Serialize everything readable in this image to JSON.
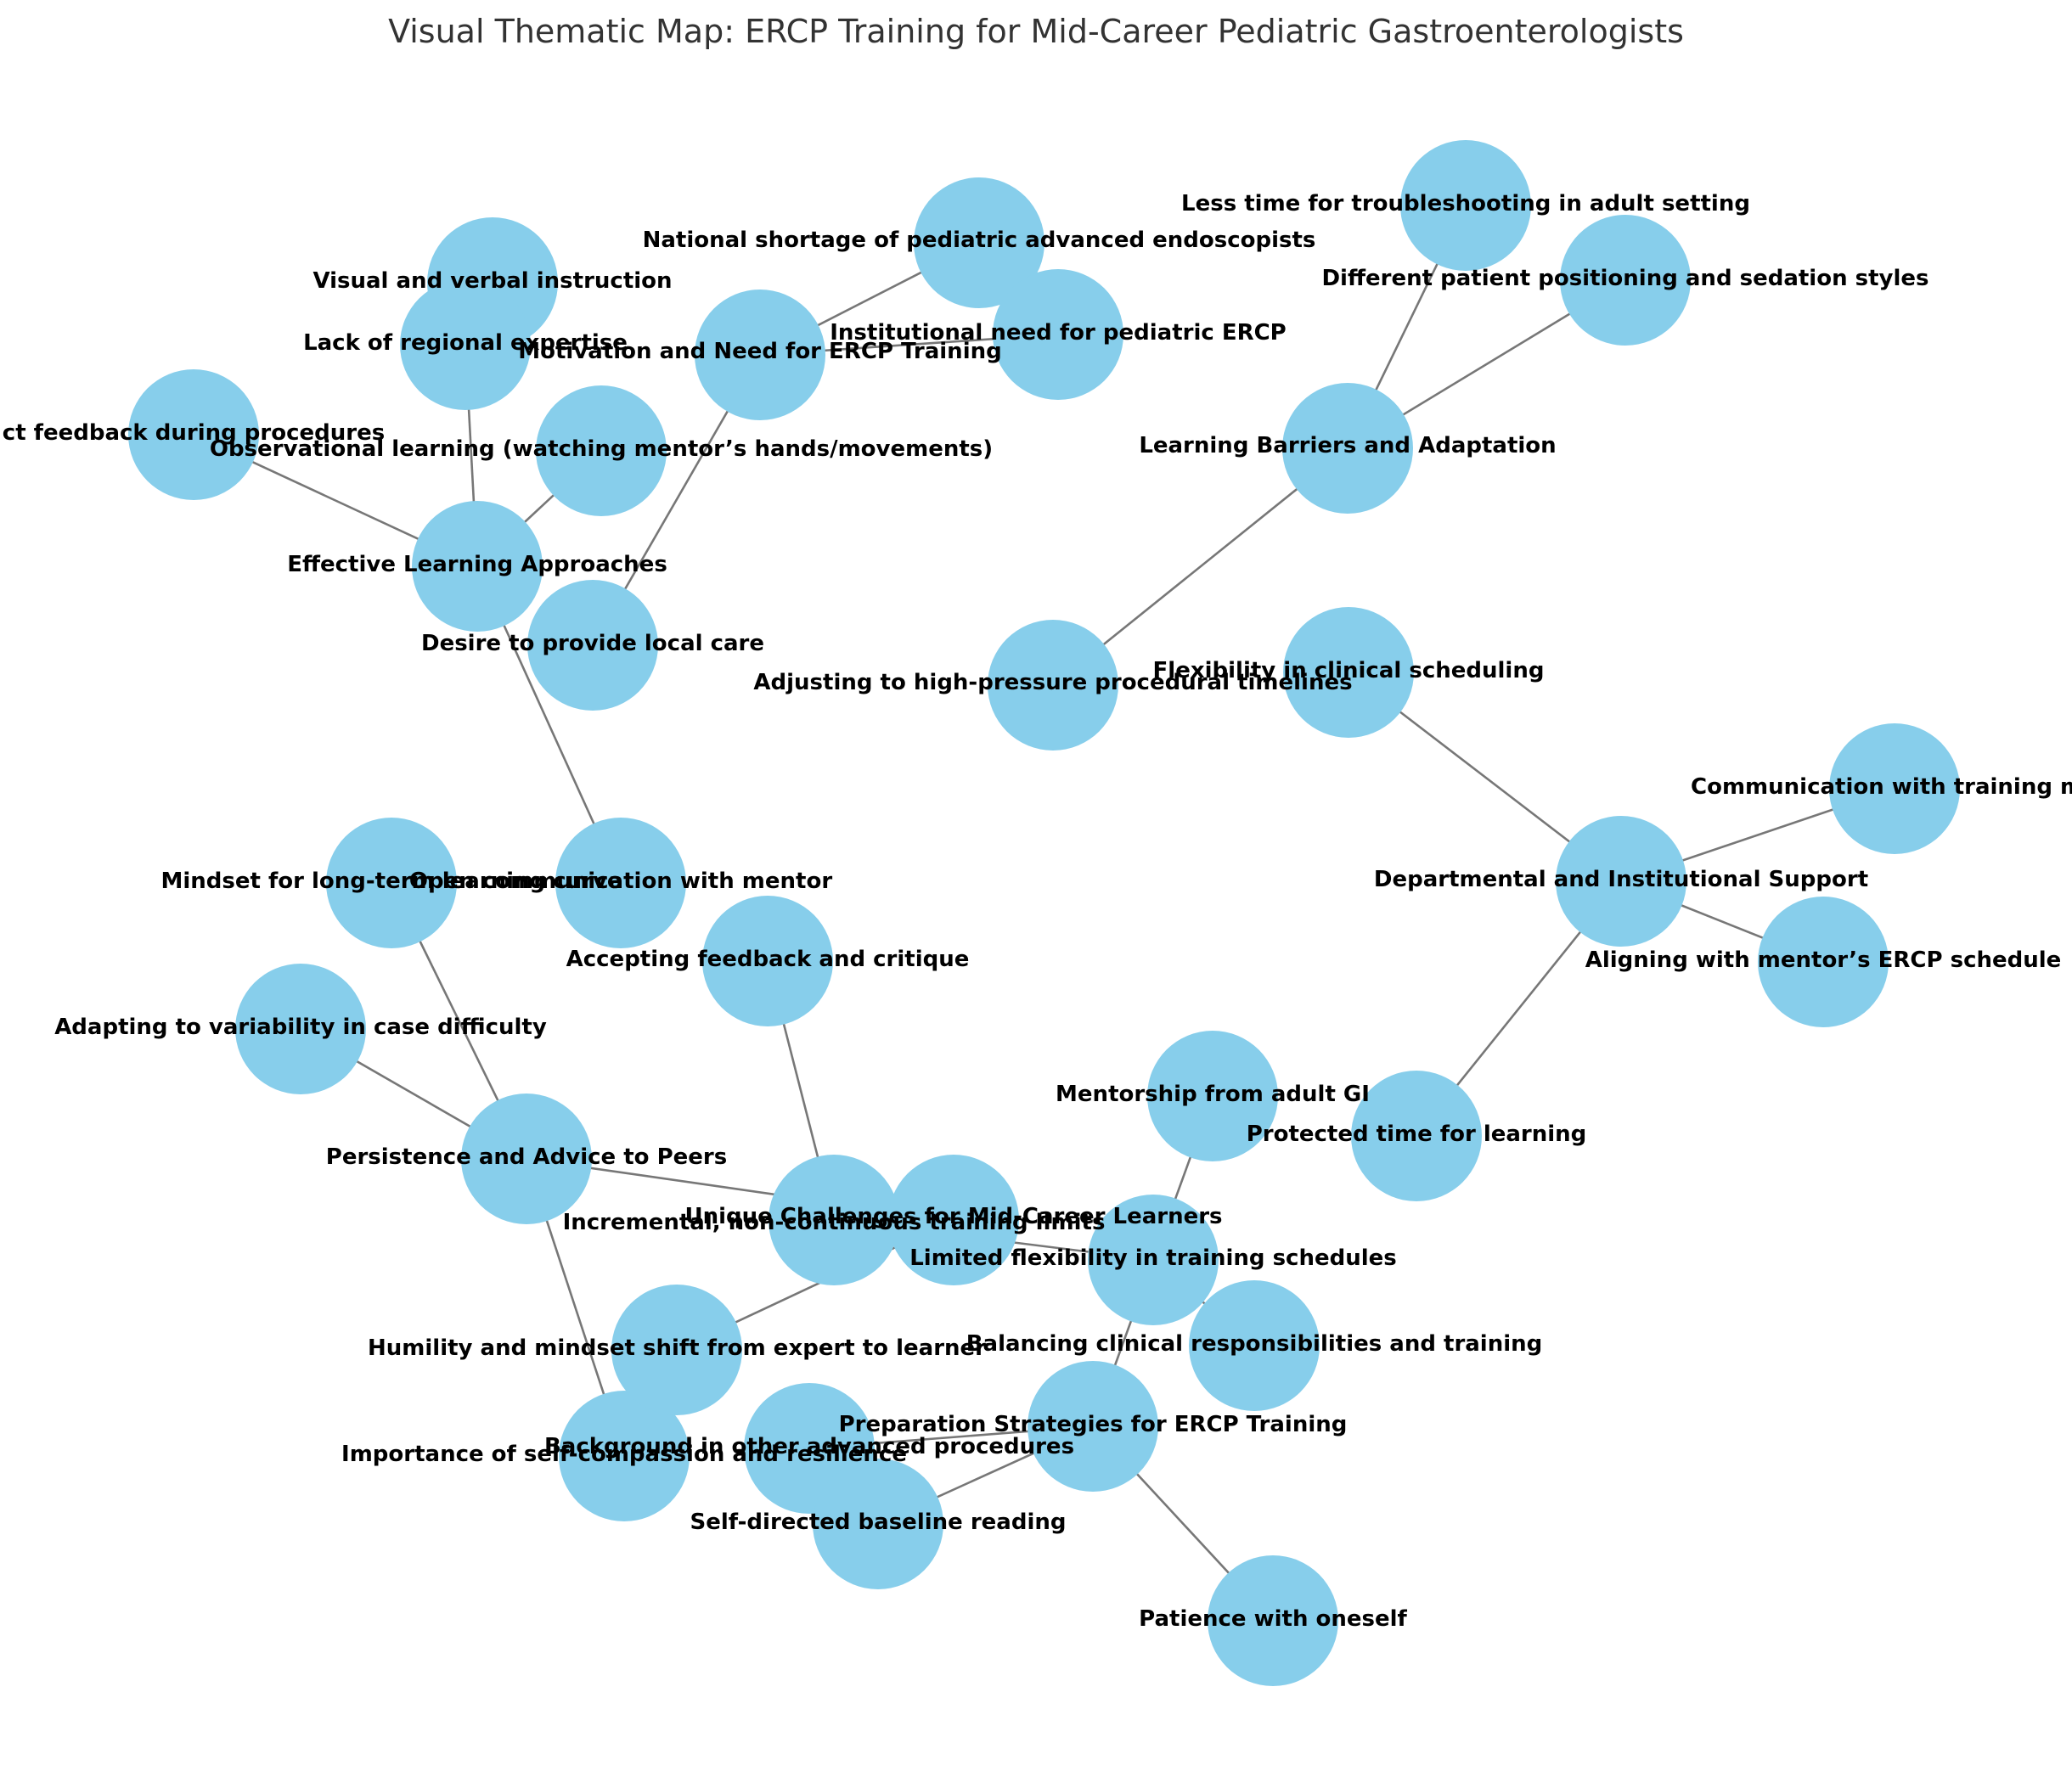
{
  "title": "Visual Thematic Map: ERCP Training for Mid-Career Pediatric Gastroenterologists",
  "colors": {
    "node_fill": "#87CEEB",
    "edge": "#777777",
    "label": "#000000",
    "title": "#333333"
  },
  "nodes": [
    {
      "id": "motivation",
      "label": "Motivation and Need for ERCP Training"
    },
    {
      "id": "shortage",
      "label": "National shortage of pediatric advanced endoscopists"
    },
    {
      "id": "institutional",
      "label": "Institutional need for pediatric ERCP"
    },
    {
      "id": "local-care",
      "label": "Desire to provide local care"
    },
    {
      "id": "barriers",
      "label": "Learning Barriers and Adaptation"
    },
    {
      "id": "troubleshooting",
      "label": "Less time for troubleshooting in adult setting"
    },
    {
      "id": "positioning",
      "label": "Different patient positioning and sedation styles"
    },
    {
      "id": "high-pressure",
      "label": "Adjusting to high-pressure procedural timelines"
    },
    {
      "id": "approaches",
      "label": "Effective Learning Approaches"
    },
    {
      "id": "visual-verbal",
      "label": "Visual and verbal instruction"
    },
    {
      "id": "regional",
      "label": "Lack of regional expertise"
    },
    {
      "id": "direct-feedback",
      "label": "ct feedback during procedures"
    },
    {
      "id": "observational",
      "label": "Observational learning (watching mentor’s hands/movements)"
    },
    {
      "id": "open-comm",
      "label": "Open communication with mentor"
    },
    {
      "id": "support",
      "label": "Departmental and Institutional Support"
    },
    {
      "id": "flexibility-sched",
      "label": "Flexibility in clinical scheduling"
    },
    {
      "id": "comm-training",
      "label": "Communication with training mo"
    },
    {
      "id": "aligning",
      "label": "Aligning with mentor’s ERCP schedule"
    },
    {
      "id": "protected",
      "label": "Protected time for learning"
    },
    {
      "id": "persistence",
      "label": "Persistence and Advice to Peers"
    },
    {
      "id": "mindset",
      "label": "Mindset for long-term learning curve"
    },
    {
      "id": "variability",
      "label": "Adapting to variability in case difficulty"
    },
    {
      "id": "self-compassion",
      "label": "Importance of self-compassion and resilience"
    },
    {
      "id": "unique",
      "label": "Unique Challenges for Mid-Career Learners"
    },
    {
      "id": "accepting",
      "label": "Accepting feedback and critique"
    },
    {
      "id": "incremental",
      "label": "Incremental, non-continuous training limits"
    },
    {
      "id": "humility",
      "label": "Humility and mindset shift from expert to learner"
    },
    {
      "id": "limited-flex",
      "label": "Limited flexibility in training schedules"
    },
    {
      "id": "mentorship",
      "label": "Mentorship from adult GI"
    },
    {
      "id": "balancing",
      "label": "Balancing clinical responsibilities and training"
    },
    {
      "id": "preparation",
      "label": "Preparation Strategies for ERCP Training"
    },
    {
      "id": "background",
      "label": "Background in other advanced procedures"
    },
    {
      "id": "self-directed",
      "label": "Self-directed baseline reading"
    },
    {
      "id": "patience",
      "label": "Patience with oneself"
    }
  ],
  "edges": [
    [
      "motivation",
      "shortage"
    ],
    [
      "motivation",
      "institutional"
    ],
    [
      "motivation",
      "local-care"
    ],
    [
      "barriers",
      "troubleshooting"
    ],
    [
      "barriers",
      "positioning"
    ],
    [
      "barriers",
      "high-pressure"
    ],
    [
      "approaches",
      "regional"
    ],
    [
      "approaches",
      "direct-feedback"
    ],
    [
      "approaches",
      "observational"
    ],
    [
      "approaches",
      "open-comm"
    ],
    [
      "support",
      "flexibility-sched"
    ],
    [
      "support",
      "comm-training"
    ],
    [
      "support",
      "aligning"
    ],
    [
      "support",
      "protected"
    ],
    [
      "persistence",
      "mindset"
    ],
    [
      "persistence",
      "variability"
    ],
    [
      "persistence",
      "self-compassion"
    ],
    [
      "persistence",
      "incremental"
    ],
    [
      "unique",
      "accepting"
    ],
    [
      "unique",
      "limited-flex"
    ],
    [
      "incremental",
      "humility"
    ],
    [
      "limited-flex",
      "mentorship"
    ],
    [
      "limited-flex",
      "balancing"
    ],
    [
      "limited-flex",
      "preparation"
    ],
    [
      "preparation",
      "background"
    ],
    [
      "preparation",
      "self-directed"
    ],
    [
      "preparation",
      "patience"
    ]
  ]
}
